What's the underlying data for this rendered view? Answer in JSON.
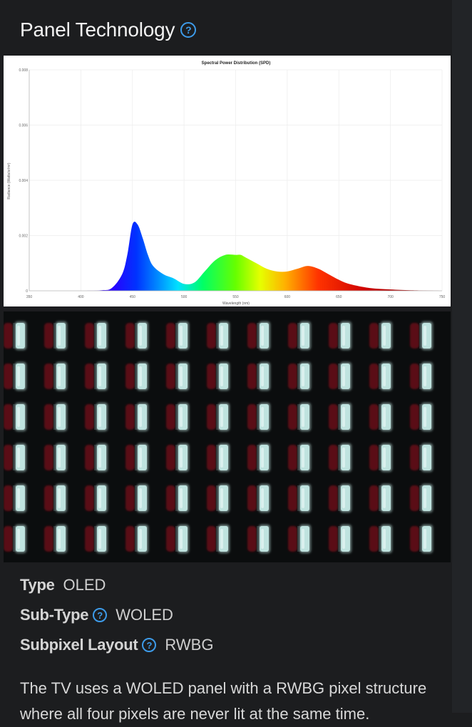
{
  "section": {
    "title": "Panel Technology",
    "help_icon": "question-circle-icon"
  },
  "spd_chart": {
    "title": "Spectral Power Distribution (SPD)",
    "xlabel": "Wavelength (nm)",
    "ylabel": "Radiance (Watts/sr/m²)"
  },
  "chart_data": {
    "type": "area",
    "title": "Spectral Power Distribution (SPD)",
    "xlabel": "Wavelength (nm)",
    "ylabel": "Radiance (Watts/sr/m²)",
    "xlim": [
      350,
      750
    ],
    "ylim": [
      0,
      0.008
    ],
    "x_ticks": [
      "350",
      "400",
      "450",
      "500",
      "550",
      "600",
      "650",
      "700",
      "750"
    ],
    "y_ticks": [
      "0",
      "0.002",
      "0.004",
      "0.006",
      "0.008"
    ],
    "grid": true,
    "fill": "wavelength-spectrum-gradient",
    "series": [
      {
        "x": [
          350,
          400,
          420,
          430,
          440,
          445,
          450,
          455,
          460,
          465,
          470,
          480,
          490,
          500,
          510,
          520,
          530,
          540,
          550,
          555,
          560,
          570,
          580,
          590,
          600,
          610,
          620,
          630,
          640,
          650,
          660,
          680,
          700,
          720,
          750
        ],
        "y": [
          0,
          0,
          2e-05,
          0.0001,
          0.0006,
          0.0013,
          0.0024,
          0.0024,
          0.0019,
          0.0013,
          0.0009,
          0.0006,
          0.00045,
          0.00025,
          0.0003,
          0.0007,
          0.0011,
          0.0013,
          0.0013,
          0.0013,
          0.0012,
          0.001,
          0.0008,
          0.0007,
          0.0007,
          0.0008,
          0.0009,
          0.0008,
          0.0006,
          0.0004,
          0.00025,
          0.0001,
          5e-05,
          2e-05,
          0
        ]
      }
    ]
  },
  "subpixel_image": {
    "rows": 6,
    "columns": 11,
    "subpixel_colors": {
      "red": "#5a1014",
      "white": "#bfe3df",
      "background": "#0b0d0e"
    }
  },
  "specs": [
    {
      "label": "Type",
      "value": "OLED",
      "has_help": false
    },
    {
      "label": "Sub-Type",
      "value": "WOLED",
      "has_help": true
    },
    {
      "label": "Subpixel Layout",
      "value": "RWBG",
      "has_help": true
    }
  ],
  "description": "The TV uses a WOLED panel with a RWBG pixel structure where all four pixels are never lit at the same time.",
  "colors": {
    "background": "#1c1d1f",
    "accent": "#3d9be9"
  }
}
